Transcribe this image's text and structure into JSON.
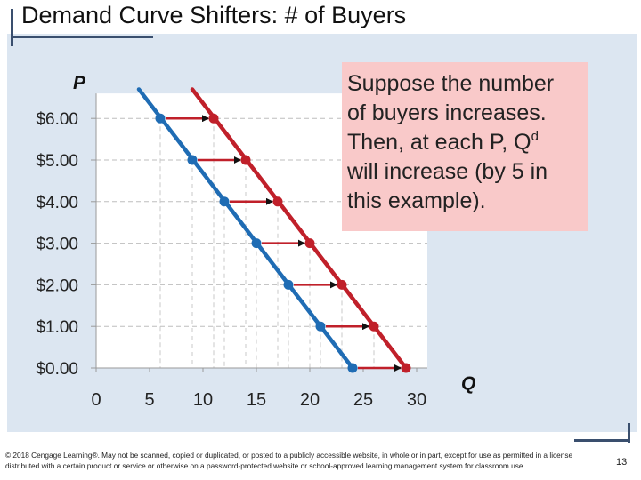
{
  "slide": {
    "title": "Demand Curve Shifters: # of Buyers",
    "callout_lines": [
      "Suppose the number",
      "of buyers increases.",
      "Then, at each P, Q",
      "will increase (by 5 in",
      "this example)."
    ],
    "callout_superscript": "d",
    "footer": "© 2018 Cengage Learning®. May not be scanned, copied or duplicated, or posted to a publicly accessible website, in whole or in part, except for use as permitted in a license distributed with a certain product or service or otherwise on a password-protected website or school-approved learning management system for classroom use.",
    "page_number": "13"
  },
  "colors": {
    "panel": "#dce6f1",
    "original_curve": "#1f6cb4",
    "new_curve": "#c0202a",
    "arrow": "#c0202a",
    "callout_bg": "#f9c9c9"
  },
  "chart_data": {
    "type": "line",
    "ylabel": "P",
    "xlabel": "Q",
    "x_ticks": [
      0,
      5,
      10,
      15,
      20,
      25,
      30
    ],
    "y_ticks": [
      0,
      1,
      2,
      3,
      4,
      5,
      6
    ],
    "y_tick_labels": [
      "$0.00",
      "$1.00",
      "$2.00",
      "$3.00",
      "$4.00",
      "$5.00",
      "$6.00"
    ],
    "xlim": [
      0,
      31
    ],
    "ylim": [
      0,
      6.6
    ],
    "grid": "dashed",
    "series": [
      {
        "color": "#1f6cb4",
        "points": [
          [
            6,
            6
          ],
          [
            9,
            5
          ],
          [
            12,
            4
          ],
          [
            15,
            3
          ],
          [
            18,
            2
          ],
          [
            21,
            1
          ],
          [
            24,
            0
          ]
        ],
        "line_extends_to": [
          [
            4,
            6.7
          ],
          [
            24,
            0
          ]
        ]
      },
      {
        "color": "#c0202a",
        "points": [
          [
            11,
            6
          ],
          [
            14,
            5
          ],
          [
            17,
            4
          ],
          [
            20,
            3
          ],
          [
            23,
            2
          ],
          [
            26,
            1
          ],
          [
            29,
            0
          ]
        ],
        "line_extends_to": [
          [
            9,
            6.7
          ],
          [
            29,
            0
          ]
        ]
      }
    ],
    "shift_arrows": [
      {
        "from": [
          6,
          6
        ],
        "to": [
          11,
          6
        ]
      },
      {
        "from": [
          9,
          5
        ],
        "to": [
          14,
          5
        ]
      },
      {
        "from": [
          12,
          4
        ],
        "to": [
          17,
          4
        ]
      },
      {
        "from": [
          15,
          3
        ],
        "to": [
          20,
          3
        ]
      },
      {
        "from": [
          18,
          2
        ],
        "to": [
          23,
          2
        ]
      },
      {
        "from": [
          21,
          1
        ],
        "to": [
          26,
          1
        ]
      },
      {
        "from": [
          24,
          0
        ],
        "to": [
          29,
          0
        ]
      }
    ]
  }
}
